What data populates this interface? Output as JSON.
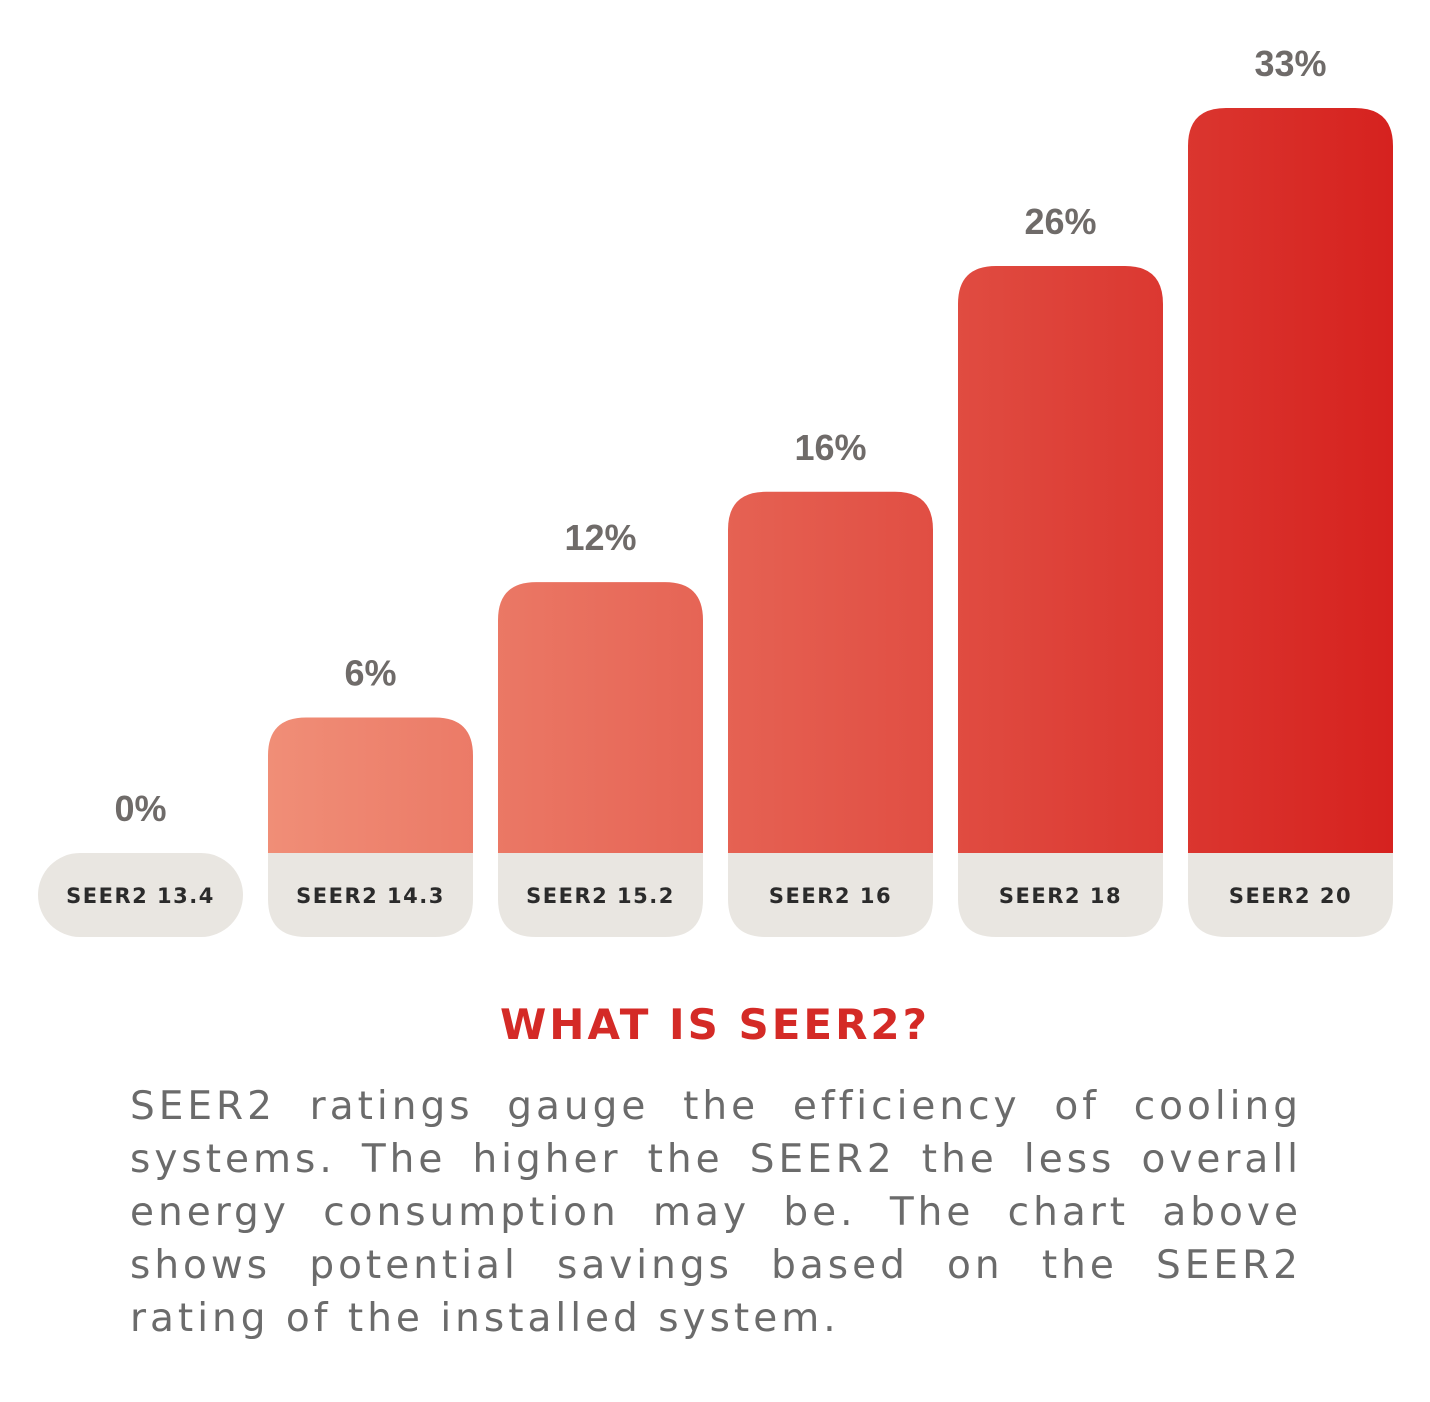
{
  "chart_data": {
    "type": "bar",
    "categories": [
      "SEER2 13.4",
      "SEER2 14.3",
      "SEER2 15.2",
      "SEER2 16",
      "SEER2 18",
      "SEER2 20"
    ],
    "values": [
      0,
      6,
      12,
      16,
      26,
      33
    ],
    "value_labels": [
      "0%",
      "6%",
      "12%",
      "16%",
      "26%",
      "33%"
    ],
    "title": "",
    "xlabel": "",
    "ylabel": "",
    "ylim": [
      0,
      33
    ],
    "grid": false,
    "legend": "none",
    "colors": {
      "bar_light": "#f08e77",
      "bar_dark": "#d6221f",
      "category_pill": "#e9e6e1",
      "value_text": "#6f6b69",
      "category_text": "#2b2b2b"
    }
  },
  "info": {
    "heading": "WHAT IS SEER2?",
    "body": "SEER2 ratings gauge the efficiency of cooling systems. The higher the SEER2 the less overall energy consumption may be. The chart above shows potential savings based on the SEER2 rating of the installed system."
  },
  "colors": {
    "heading": "#d42a26",
    "body_text": "#6b6b6b",
    "background": "#ffffff"
  }
}
